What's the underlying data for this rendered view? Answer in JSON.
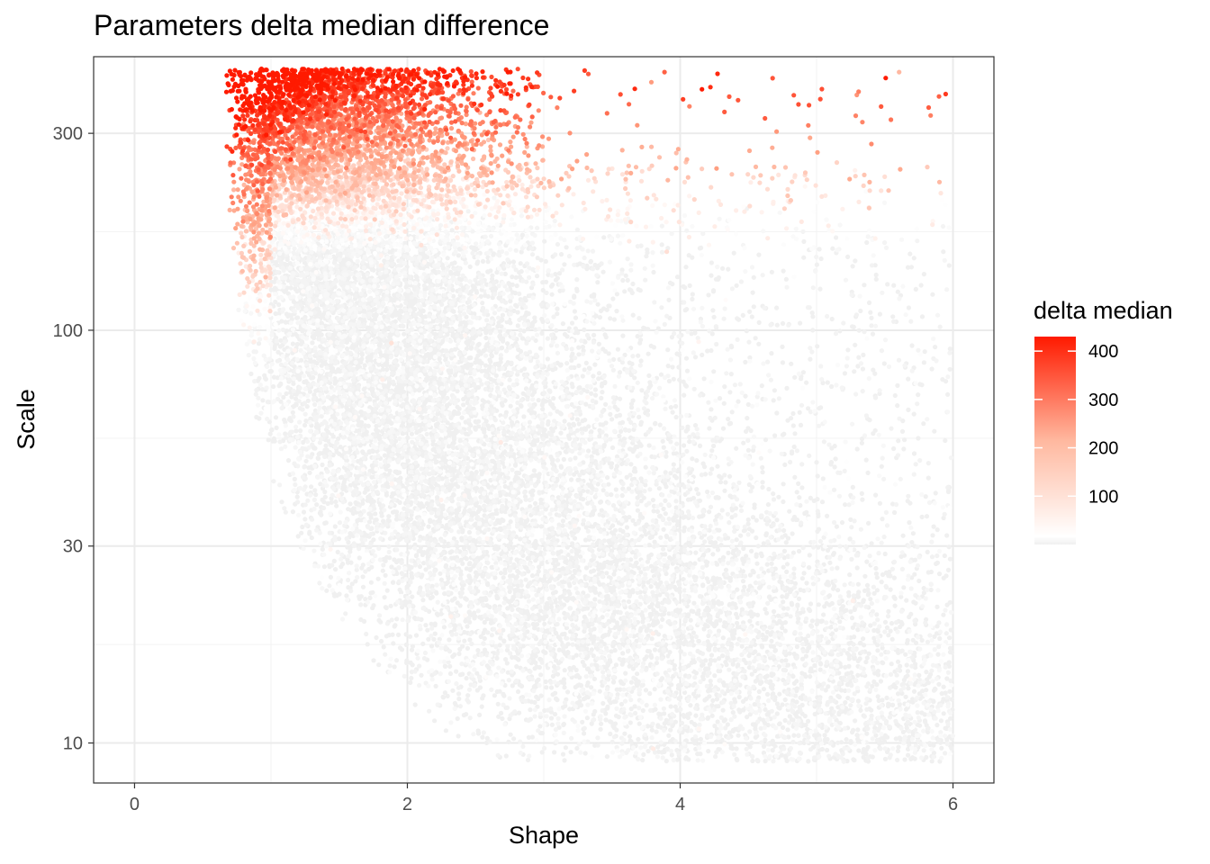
{
  "chart_data": {
    "type": "scatter",
    "title": "Parameters delta median difference",
    "xlabel": "Shape",
    "ylabel": "Scale",
    "xlim": [
      -0.3,
      6.3
    ],
    "ylim": [
      8,
      460
    ],
    "y_scale": "log",
    "x_ticks": [
      0,
      2,
      4,
      6
    ],
    "y_ticks": [
      10,
      30,
      100,
      300
    ],
    "grid": true,
    "legend": {
      "title": "delta median",
      "placement": "right",
      "ticks": [
        100,
        200,
        300,
        400
      ],
      "range": [
        0,
        430
      ],
      "colors": {
        "low": "#f0f0f0",
        "mid": "#ffffff",
        "high": "#ff1a00"
      }
    },
    "point_cloud": {
      "description_values": {
        "shape_range": [
          0.6,
          6.0
        ],
        "scale_range": [
          9,
          430
        ],
        "high_delta_band_scale_min": 250
      }
    }
  }
}
